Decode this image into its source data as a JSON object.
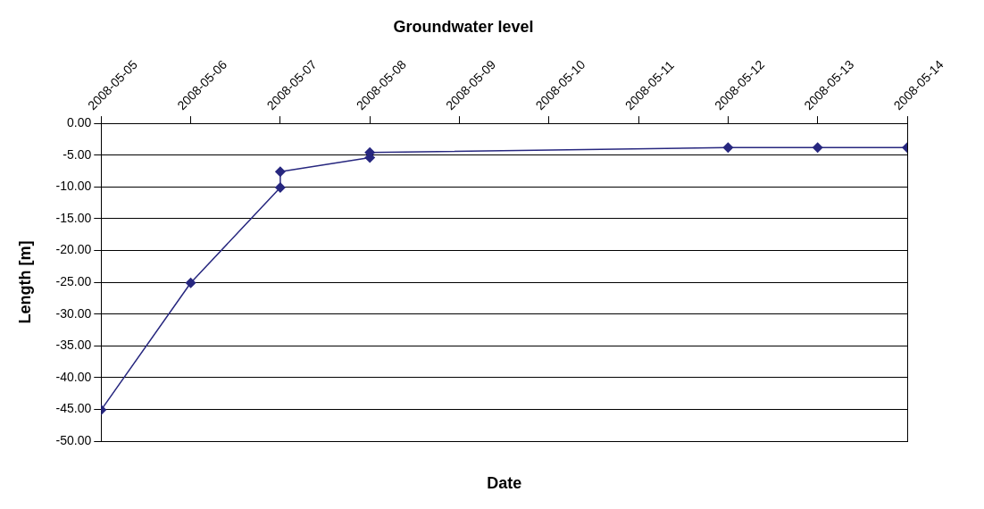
{
  "chart_data": {
    "type": "line",
    "title": "Groundwater level",
    "xlabel": "Date",
    "ylabel": "Length [m]",
    "x": [
      "2008-05-05",
      "2008-05-06",
      "2008-05-07",
      "2008-05-07",
      "2008-05-08",
      "2008-05-08",
      "2008-05-12",
      "2008-05-13",
      "2008-05-14"
    ],
    "series": [
      {
        "color": "#27277f",
        "values": [
          -45.1,
          -25.1,
          -10.1,
          -7.6,
          -5.4,
          -4.6,
          -3.8,
          -3.8,
          -3.8
        ]
      }
    ],
    "xlim": [
      "2008-05-05",
      "2008-05-14"
    ],
    "xticks": [
      "2008-05-05",
      "2008-05-06",
      "2008-05-07",
      "2008-05-08",
      "2008-05-09",
      "2008-05-10",
      "2008-05-11",
      "2008-05-12",
      "2008-05-13",
      "2008-05-14"
    ],
    "ylim": [
      -50,
      0
    ],
    "yticks": [
      {
        "value": -50,
        "label": "-50.00"
      },
      {
        "value": -45,
        "label": "-45.00"
      },
      {
        "value": -40,
        "label": "-40.00"
      },
      {
        "value": -35,
        "label": "-35.00"
      },
      {
        "value": -30,
        "label": "-30.00"
      },
      {
        "value": -25,
        "label": "-25.00"
      },
      {
        "value": -20,
        "label": "-20.00"
      },
      {
        "value": -15,
        "label": "-15.00"
      },
      {
        "value": -10,
        "label": "-10.00"
      },
      {
        "value": -5,
        "label": "-5.00"
      },
      {
        "value": 0,
        "label": "0.00"
      }
    ],
    "grid": "y",
    "legend": false,
    "marker": "diamond",
    "line_style": "solid"
  }
}
